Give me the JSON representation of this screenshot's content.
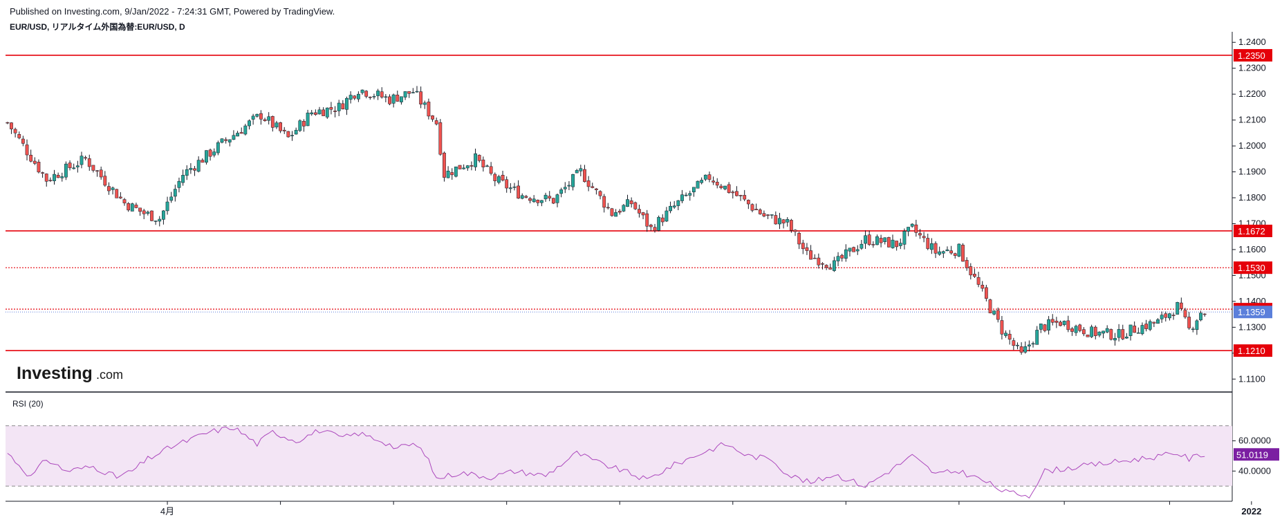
{
  "header": {
    "published": "Published on Investing.com, 9/Jan/2022 - 7:24:31 GMT, Powered by TradingView.",
    "symbol": "EUR/USD, リアルタイム外国為替:EUR/USD, D"
  },
  "logo": {
    "main": "Investing",
    "suffix": ".com"
  },
  "colors": {
    "up": "#26a69a",
    "down": "#ef5350",
    "level": "#e5000a",
    "last_price_badge": "#5b7fdb",
    "rsi_line": "#ab47bc",
    "rsi_fill": "#f3e5f5",
    "rsi_badge": "#7b1fa2"
  },
  "chart_data": {
    "type": "candlestick",
    "title": "EUR/USD",
    "timeframe": "D",
    "y_range": [
      1.105,
      1.243
    ],
    "y_ticks": [
      "1.2400",
      "1.2300",
      "1.2200",
      "1.2100",
      "1.2000",
      "1.1900",
      "1.1800",
      "1.1700",
      "1.1600",
      "1.1500",
      "1.1400",
      "1.1300",
      "1.1200",
      "1.1100"
    ],
    "x_labels": [
      {
        "label": "4月",
        "index": 41
      },
      {
        "label": "2022",
        "index": 319
      }
    ],
    "x_dividers": [
      41,
      70,
      99,
      128,
      157,
      186,
      215,
      244,
      271,
      298,
      319
    ],
    "levels": [
      {
        "value": 1.235,
        "label": "1.2350",
        "style": "solid"
      },
      {
        "value": 1.1672,
        "label": "1.1672",
        "style": "solid"
      },
      {
        "value": 1.153,
        "label": "1.1530",
        "style": "dotted"
      },
      {
        "value": 1.137,
        "label": "1.1370",
        "style": "dotted"
      },
      {
        "value": 1.121,
        "label": "1.1210",
        "style": "solid"
      }
    ],
    "last_price": {
      "value": 1.1359,
      "label": "1.1359"
    },
    "close_path": [
      [
        0,
        1.209
      ],
      [
        10,
        1.187
      ],
      [
        20,
        1.195
      ],
      [
        30,
        1.178
      ],
      [
        35,
        1.174
      ],
      [
        39,
        1.172
      ],
      [
        45,
        1.189
      ],
      [
        55,
        1.201
      ],
      [
        65,
        1.212
      ],
      [
        72,
        1.203
      ],
      [
        78,
        1.213
      ],
      [
        85,
        1.215
      ],
      [
        90,
        1.222
      ],
      [
        98,
        1.218
      ],
      [
        104,
        1.221
      ],
      [
        110,
        1.209
      ],
      [
        112,
        1.189
      ],
      [
        120,
        1.195
      ],
      [
        125,
        1.187
      ],
      [
        132,
        1.181
      ],
      [
        140,
        1.179
      ],
      [
        147,
        1.19
      ],
      [
        155,
        1.174
      ],
      [
        160,
        1.178
      ],
      [
        165,
        1.168
      ],
      [
        172,
        1.178
      ],
      [
        180,
        1.188
      ],
      [
        186,
        1.182
      ],
      [
        194,
        1.173
      ],
      [
        200,
        1.17
      ],
      [
        205,
        1.158
      ],
      [
        212,
        1.154
      ],
      [
        220,
        1.164
      ],
      [
        228,
        1.162
      ],
      [
        232,
        1.168
      ],
      [
        238,
        1.159
      ],
      [
        244,
        1.16
      ],
      [
        250,
        1.143
      ],
      [
        255,
        1.129
      ],
      [
        260,
        1.119
      ],
      [
        265,
        1.13
      ],
      [
        270,
        1.132
      ],
      [
        278,
        1.128
      ],
      [
        285,
        1.127
      ],
      [
        290,
        1.13
      ],
      [
        295,
        1.132
      ],
      [
        300,
        1.138
      ],
      [
        303,
        1.129
      ],
      [
        306,
        1.1359
      ]
    ],
    "rsi": {
      "name": "RSI (20)",
      "y_range": [
        20,
        85
      ],
      "y_ticks": [
        "60.0000",
        "40.0000"
      ],
      "bands": [
        30,
        70
      ],
      "last": {
        "value": 51.0119,
        "label": "51.0119"
      },
      "path": [
        [
          0,
          52
        ],
        [
          6,
          36
        ],
        [
          10,
          48
        ],
        [
          15,
          40
        ],
        [
          22,
          43
        ],
        [
          28,
          36
        ],
        [
          32,
          40
        ],
        [
          36,
          48
        ],
        [
          42,
          56
        ],
        [
          48,
          62
        ],
        [
          52,
          66
        ],
        [
          58,
          69
        ],
        [
          64,
          58
        ],
        [
          68,
          66
        ],
        [
          74,
          60
        ],
        [
          80,
          67
        ],
        [
          86,
          62
        ],
        [
          90,
          65
        ],
        [
          96,
          60
        ],
        [
          100,
          55
        ],
        [
          104,
          58
        ],
        [
          107,
          52
        ],
        [
          110,
          35
        ],
        [
          116,
          39
        ],
        [
          124,
          36
        ],
        [
          130,
          40
        ],
        [
          138,
          37
        ],
        [
          146,
          52
        ],
        [
          152,
          45
        ],
        [
          158,
          40
        ],
        [
          164,
          34
        ],
        [
          170,
          43
        ],
        [
          178,
          52
        ],
        [
          184,
          58
        ],
        [
          190,
          50
        ],
        [
          196,
          48
        ],
        [
          200,
          38
        ],
        [
          206,
          32
        ],
        [
          212,
          38
        ],
        [
          220,
          30
        ],
        [
          226,
          40
        ],
        [
          232,
          50
        ],
        [
          238,
          38
        ],
        [
          244,
          40
        ],
        [
          250,
          34
        ],
        [
          256,
          26
        ],
        [
          262,
          24
        ],
        [
          266,
          40
        ],
        [
          272,
          42
        ],
        [
          278,
          44
        ],
        [
          284,
          46
        ],
        [
          290,
          48
        ],
        [
          296,
          50
        ],
        [
          300,
          52
        ],
        [
          303,
          48
        ],
        [
          306,
          51
        ]
      ]
    }
  }
}
